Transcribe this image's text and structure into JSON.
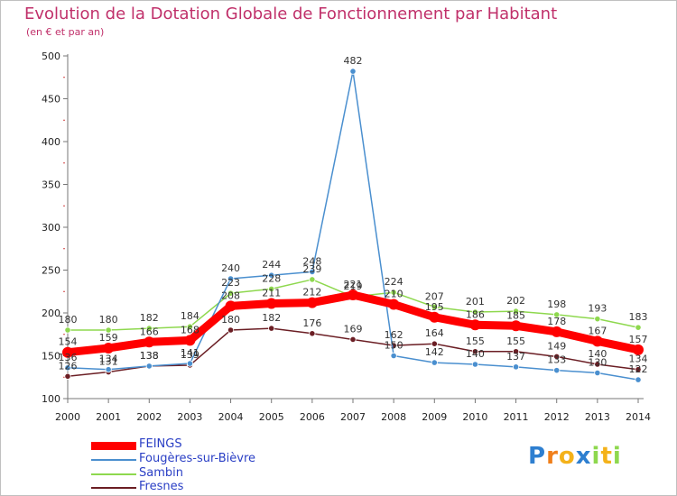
{
  "chart_data": {
    "type": "line",
    "title": "Evolution de la Dotation Globale de Fonctionnement par Habitant",
    "subtitle": "(en € et par an)",
    "xlabel": "",
    "ylabel": "",
    "ylim": [
      100,
      500
    ],
    "yticks": [
      100,
      150,
      200,
      250,
      300,
      350,
      400,
      450,
      500
    ],
    "categories": [
      "2000",
      "2001",
      "2002",
      "2003",
      "2004",
      "2005",
      "2006",
      "2007",
      "2008",
      "2009",
      "2010",
      "2011",
      "2012",
      "2013",
      "2014"
    ],
    "series": [
      {
        "name": "Fresnes",
        "color": "#6b1e24",
        "values": [
          126,
          131,
          138,
          139,
          180,
          182,
          176,
          169,
          162,
          164,
          155,
          155,
          149,
          140,
          134
        ]
      },
      {
        "name": "Sambin",
        "color": "#8ed84e",
        "values": [
          180,
          180,
          182,
          184,
          223,
          228,
          239,
          219,
          224,
          207,
          201,
          202,
          198,
          193,
          183
        ]
      },
      {
        "name": "Fougères-sur-Bièvre",
        "color": "#4a8fcf",
        "values": [
          136,
          134,
          138,
          141,
          240,
          244,
          248,
          482,
          150,
          142,
          140,
          137,
          133,
          130,
          122
        ]
      },
      {
        "name": "FEINGS",
        "color": "#ff0000",
        "values": [
          154,
          159,
          166,
          168,
          208,
          211,
          212,
          221,
          210,
          195,
          186,
          185,
          178,
          167,
          157
        ]
      }
    ],
    "legend": [
      "FEINGS",
      "Fougères-sur-Bièvre",
      "Sambin",
      "Fresnes"
    ]
  },
  "logo": {
    "text": "Proxiti"
  }
}
